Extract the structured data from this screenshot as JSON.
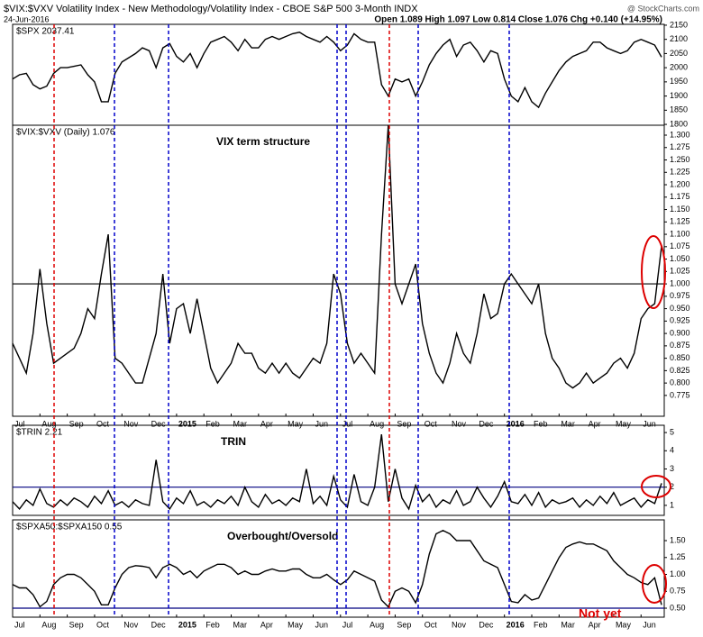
{
  "chart_data": [
    {
      "type": "line",
      "title": "$VIX:$VXV Volatility Index - New Methodology/Volatility Index - CBOE S&P 500 3-Month INDX",
      "subtitle": "24-Jun-2016",
      "ohlc": "Open 1.089 High 1.097 Low 0.814 Close 1.076 Chg +0.140 (+14.95%)",
      "credit": "@ StockCharts.com",
      "ylim": [
        1797,
        2153
      ],
      "yticks": [
        1800,
        1850,
        1900,
        1950,
        2000,
        2050,
        2100,
        2150
      ],
      "series": [
        {
          "name": "$SPX 2037.41",
          "color": "#000000",
          "values": [
            1960,
            1975,
            1980,
            1940,
            1925,
            1935,
            1980,
            2000,
            2000,
            2005,
            2010,
            1975,
            1950,
            1880,
            1880,
            1980,
            2020,
            2035,
            2050,
            2070,
            2060,
            2000,
            2070,
            2085,
            2040,
            2020,
            2050,
            2000,
            2050,
            2090,
            2100,
            2110,
            2090,
            2060,
            2100,
            2070,
            2070,
            2100,
            2110,
            2100,
            2110,
            2120,
            2125,
            2110,
            2100,
            2090,
            2110,
            2090,
            2060,
            2080,
            2120,
            2100,
            2090,
            2090,
            1940,
            1900,
            1960,
            1950,
            1960,
            1900,
            1950,
            2010,
            2050,
            2080,
            2100,
            2040,
            2080,
            2090,
            2060,
            2020,
            2060,
            2050,
            1960,
            1900,
            1880,
            1930,
            1880,
            1860,
            1910,
            1950,
            1990,
            2020,
            2040,
            2050,
            2060,
            2090,
            2090,
            2070,
            2060,
            2050,
            2060,
            2090,
            2100,
            2090,
            2080,
            2037.41
          ]
        }
      ]
    },
    {
      "type": "line",
      "annotation": "VIX term structure",
      "hline": {
        "value": 1,
        "color": "#000000"
      },
      "categories": [
        "Jul",
        null,
        null,
        null,
        "Aug",
        null,
        null,
        null,
        "Sep",
        null,
        null,
        null,
        "Oct",
        null,
        null,
        null,
        "Nov",
        null,
        null,
        null,
        "Dec",
        null,
        null,
        null,
        "2015",
        null,
        null,
        null,
        "Feb",
        null,
        null,
        null,
        "Mar",
        null,
        null,
        null,
        "Apr",
        null,
        null,
        null,
        "May",
        null,
        null,
        null,
        "Jun",
        null,
        null,
        null,
        "Jul",
        null,
        null,
        null,
        "Aug",
        null,
        null,
        null,
        "Sep",
        null,
        null,
        null,
        "Oct",
        null,
        null,
        null,
        "Nov",
        null,
        null,
        null,
        "Dec",
        null,
        null,
        null,
        "2016",
        null,
        null,
        null,
        "Feb",
        null,
        null,
        null,
        "Mar",
        null,
        null,
        null,
        "Apr",
        null,
        null,
        null,
        "May",
        null,
        null,
        null,
        "Jun",
        null,
        null,
        null
      ],
      "ylim": [
        0.733,
        1.32
      ],
      "yticks": [
        {
          "value": 0.775,
          "label": "0.775"
        },
        {
          "value": 0.8,
          "label": "0.800"
        },
        {
          "value": 0.825,
          "label": "0.825"
        },
        {
          "value": 0.85,
          "label": "0.850"
        },
        {
          "value": 0.875,
          "label": "0.875"
        },
        {
          "value": 0.9,
          "label": "0.900"
        },
        {
          "value": 0.925,
          "label": "0.925"
        },
        {
          "value": 0.95,
          "label": "0.950"
        },
        {
          "value": 0.975,
          "label": "0.975"
        },
        {
          "value": 1,
          "label": "1.000"
        },
        {
          "value": 1.025,
          "label": "1.025"
        },
        {
          "value": 1.05,
          "label": "1.050"
        },
        {
          "value": 1.075,
          "label": "1.075"
        },
        {
          "value": 1.1,
          "label": "1.100"
        },
        {
          "value": 1.125,
          "label": "1.125"
        },
        {
          "value": 1.15,
          "label": "1.150"
        },
        {
          "value": 1.175,
          "label": "1.175"
        },
        {
          "value": 1.2,
          "label": "1.200"
        },
        {
          "value": 1.225,
          "label": "1.225"
        },
        {
          "value": 1.25,
          "label": "1.250"
        },
        {
          "value": 1.275,
          "label": "1.275"
        },
        {
          "value": 1.3,
          "label": "1.300"
        }
      ],
      "series": [
        {
          "name": "$VIX:$VXV (Daily) 1.076",
          "color": "#000000",
          "values": [
            0.88,
            0.85,
            0.82,
            0.9,
            1.03,
            0.92,
            0.84,
            0.85,
            0.86,
            0.87,
            0.9,
            0.95,
            0.93,
            1.02,
            1.1,
            0.85,
            0.84,
            0.82,
            0.8,
            0.8,
            0.85,
            0.9,
            1.02,
            0.88,
            0.95,
            0.96,
            0.9,
            0.97,
            0.9,
            0.83,
            0.8,
            0.82,
            0.84,
            0.88,
            0.86,
            0.86,
            0.83,
            0.82,
            0.84,
            0.82,
            0.84,
            0.82,
            0.81,
            0.83,
            0.85,
            0.84,
            0.88,
            1.02,
            0.98,
            0.88,
            0.84,
            0.86,
            0.84,
            0.82,
            1.1,
            1.32,
            1.0,
            0.96,
            1.0,
            1.04,
            0.92,
            0.86,
            0.82,
            0.8,
            0.84,
            0.9,
            0.86,
            0.84,
            0.9,
            0.98,
            0.93,
            0.94,
            1.0,
            1.02,
            1.0,
            0.98,
            0.96,
            1.0,
            0.9,
            0.85,
            0.83,
            0.8,
            0.79,
            0.8,
            0.82,
            0.8,
            0.81,
            0.82,
            0.84,
            0.85,
            0.83,
            0.86,
            0.93,
            0.95,
            0.96,
            1.076
          ]
        }
      ]
    },
    {
      "type": "line",
      "annotation": "TRIN",
      "hline": {
        "value": 2,
        "color": "#000080"
      },
      "ylim": [
        0.45,
        5.4
      ],
      "yticks": [
        1,
        2,
        3,
        4,
        5
      ],
      "series": [
        {
          "name": "$TRIN 2.21",
          "color": "#000000",
          "values": [
            1.2,
            0.8,
            1.3,
            1.0,
            1.9,
            1.1,
            0.9,
            1.3,
            1.0,
            1.4,
            1.2,
            0.9,
            1.5,
            1.1,
            1.8,
            1.0,
            1.2,
            0.9,
            1.3,
            1.1,
            1.0,
            3.5,
            1.2,
            0.8,
            1.4,
            1.1,
            1.8,
            1.0,
            1.2,
            0.9,
            1.3,
            1.1,
            1.5,
            1.0,
            2.0,
            1.2,
            0.9,
            1.6,
            1.1,
            1.3,
            1.0,
            1.4,
            1.2,
            3.0,
            1.1,
            1.5,
            1.0,
            2.6,
            1.3,
            0.9,
            2.7,
            1.2,
            1.0,
            2.0,
            4.9,
            1.2,
            3.0,
            1.4,
            0.8,
            2.1,
            1.2,
            1.6,
            0.9,
            1.3,
            1.1,
            1.8,
            1.0,
            1.2,
            2.0,
            1.4,
            0.9,
            1.5,
            2.3,
            1.2,
            1.1,
            1.6,
            1.0,
            1.7,
            0.9,
            1.3,
            1.1,
            1.2,
            1.4,
            0.9,
            1.3,
            1.0,
            1.5,
            1.1,
            1.7,
            1.0,
            1.2,
            1.4,
            0.9,
            1.3,
            1.1,
            2.21
          ]
        }
      ]
    },
    {
      "type": "line",
      "annotation": "Overbought/Oversold",
      "note": {
        "text": "Not yet",
        "color": "#dd0000"
      },
      "hline": {
        "value": 0.5,
        "color": "#000080"
      },
      "categories": [
        "Jul",
        null,
        null,
        null,
        "Aug",
        null,
        null,
        null,
        "Sep",
        null,
        null,
        null,
        "Oct",
        null,
        null,
        null,
        "Nov",
        null,
        null,
        null,
        "Dec",
        null,
        null,
        null,
        "2015",
        null,
        null,
        null,
        "Feb",
        null,
        null,
        null,
        "Mar",
        null,
        null,
        null,
        "Apr",
        null,
        null,
        null,
        "May",
        null,
        null,
        null,
        "Jun",
        null,
        null,
        null,
        "Jul",
        null,
        null,
        null,
        "Aug",
        null,
        null,
        null,
        "Sep",
        null,
        null,
        null,
        "Oct",
        null,
        null,
        null,
        "Nov",
        null,
        null,
        null,
        "Dec",
        null,
        null,
        null,
        "2016",
        null,
        null,
        null,
        "Feb",
        null,
        null,
        null,
        "Mar",
        null,
        null,
        null,
        "Apr",
        null,
        null,
        null,
        "May",
        null,
        null,
        null,
        "Jun",
        null,
        null,
        null
      ],
      "ylim": [
        0.367,
        1.807
      ],
      "yticks": [
        {
          "value": 0.5,
          "label": "0.50"
        },
        {
          "value": 0.75,
          "label": "0.75"
        },
        {
          "value": 1,
          "label": "1.00"
        },
        {
          "value": 1.25,
          "label": "1.25"
        },
        {
          "value": 1.5,
          "label": "1.50"
        }
      ],
      "series": [
        {
          "name": "$SPXA50:$SPXA150 0.55",
          "color": "#000000",
          "values": [
            0.85,
            0.8,
            0.8,
            0.7,
            0.52,
            0.6,
            0.85,
            0.95,
            1.0,
            1.0,
            0.95,
            0.85,
            0.75,
            0.55,
            0.55,
            0.8,
            1.0,
            1.1,
            1.13,
            1.12,
            1.1,
            0.95,
            1.1,
            1.15,
            1.1,
            1.0,
            1.05,
            0.95,
            1.05,
            1.1,
            1.15,
            1.15,
            1.1,
            1.0,
            1.05,
            1.0,
            1.0,
            1.05,
            1.08,
            1.05,
            1.05,
            1.08,
            1.08,
            1.0,
            0.95,
            0.95,
            1.0,
            0.92,
            0.85,
            0.92,
            1.05,
            1.0,
            0.95,
            0.9,
            0.62,
            0.52,
            0.75,
            0.8,
            0.75,
            0.58,
            0.85,
            1.3,
            1.6,
            1.65,
            1.6,
            1.5,
            1.5,
            1.5,
            1.35,
            1.2,
            1.15,
            1.1,
            0.85,
            0.6,
            0.58,
            0.7,
            0.62,
            0.65,
            0.85,
            1.05,
            1.25,
            1.4,
            1.45,
            1.48,
            1.45,
            1.45,
            1.4,
            1.35,
            1.2,
            1.1,
            1.0,
            0.95,
            0.88,
            0.85,
            0.95,
            0.55
          ]
        }
      ]
    }
  ]
}
